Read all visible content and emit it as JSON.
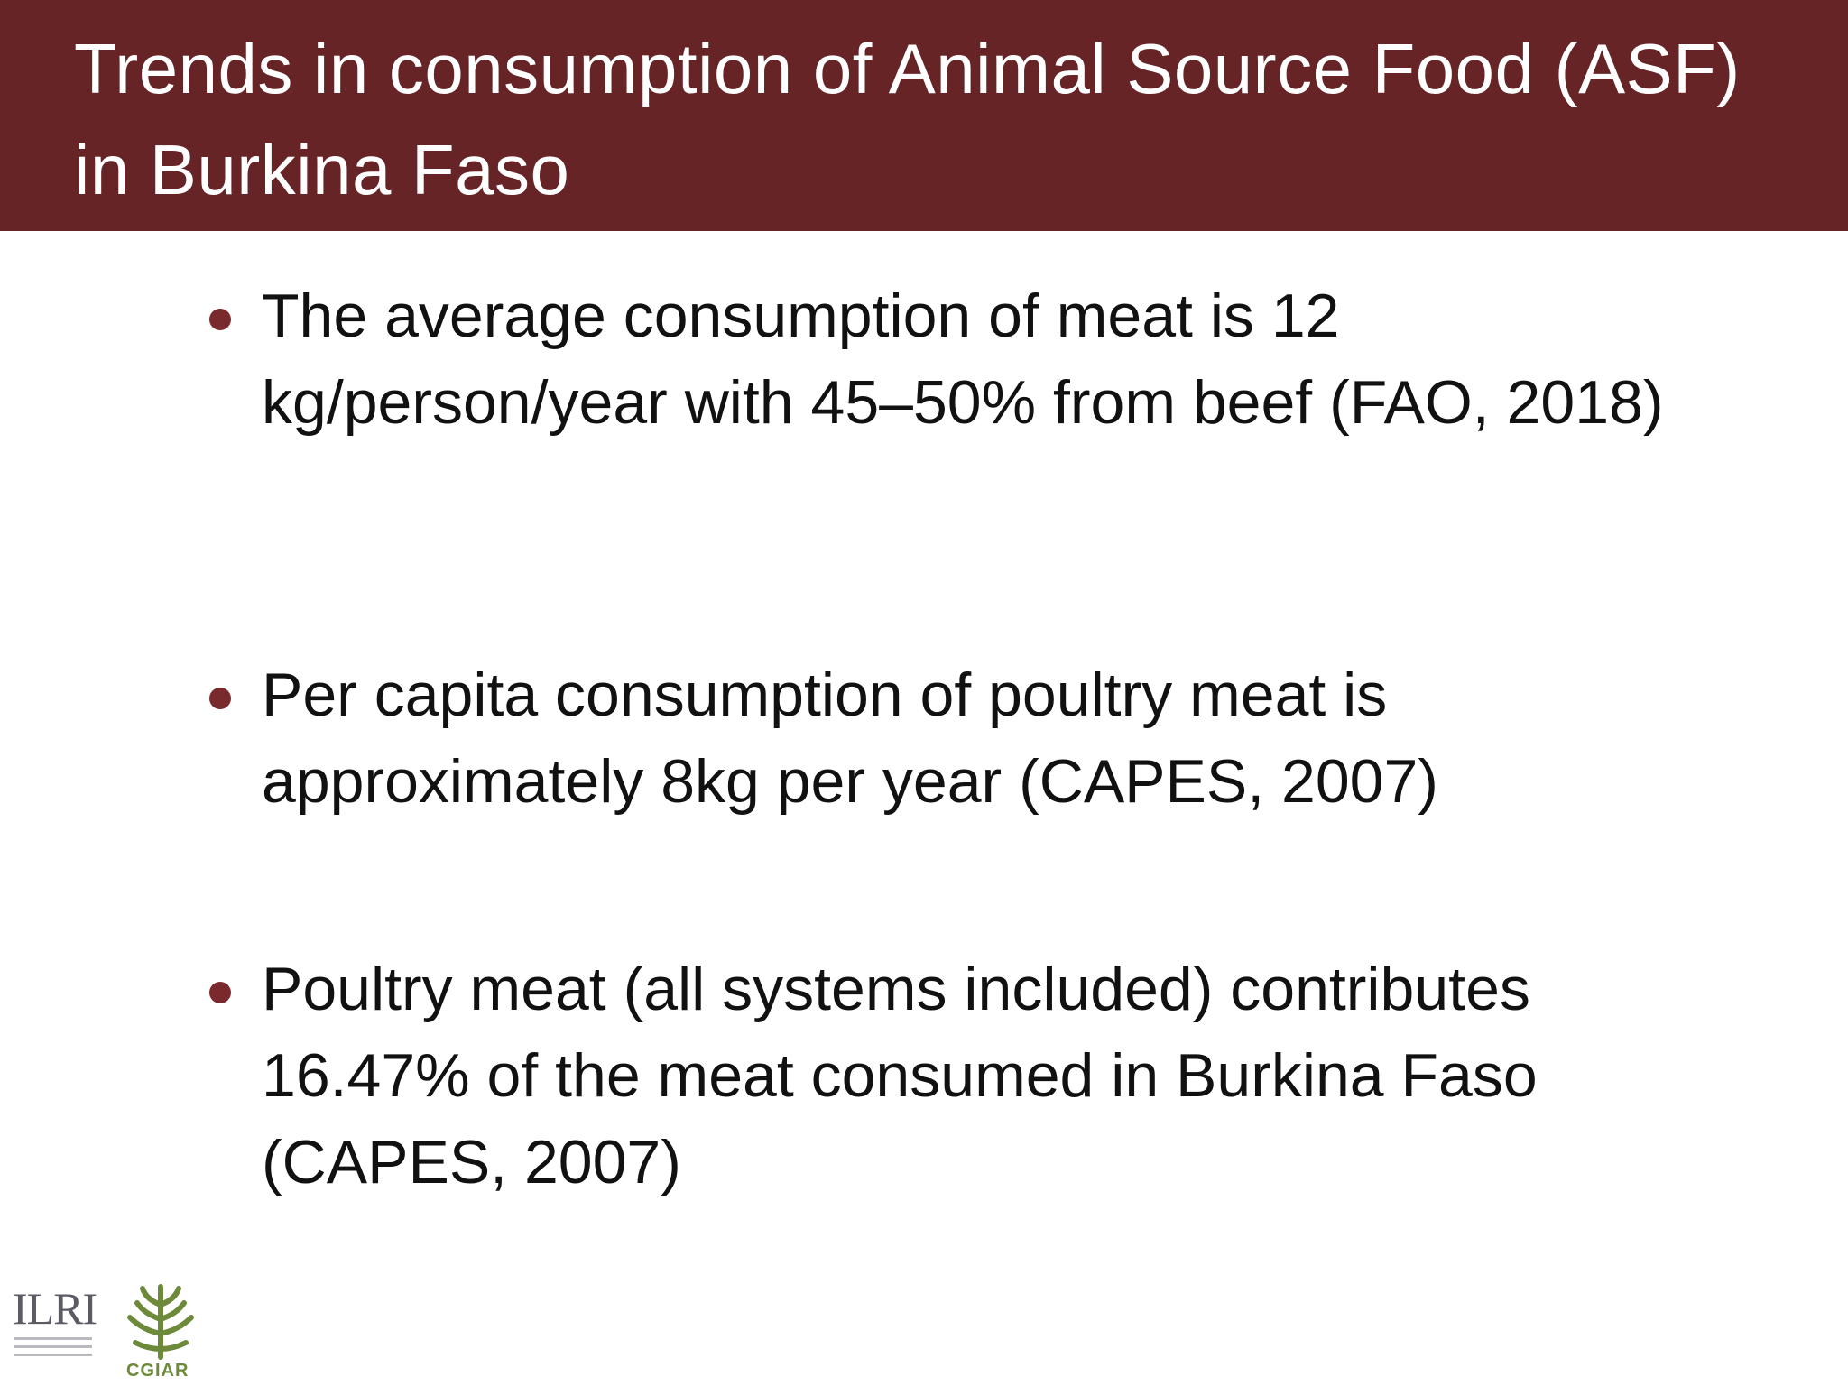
{
  "slide": {
    "title": "Trends in consumption of Animal Source Food (ASF) in Burkina Faso",
    "bullets": [
      "The average consumption of meat is 12 kg/person/year with 45–50% from beef (FAO, 2018)",
      "Per capita consumption of poultry meat is approximately 8kg per year (CAPES, 2007)",
      "Poultry meat (all systems included) contributes 16.47% of the meat consumed in Burkina Faso (CAPES, 2007)"
    ],
    "logos": {
      "ilri": "ILRI",
      "cgiar": "CGIAR"
    }
  },
  "colors": {
    "title_bar": "#672426",
    "bullet": "#7a2a2c",
    "cgiar_green": "#6d8a3b"
  }
}
